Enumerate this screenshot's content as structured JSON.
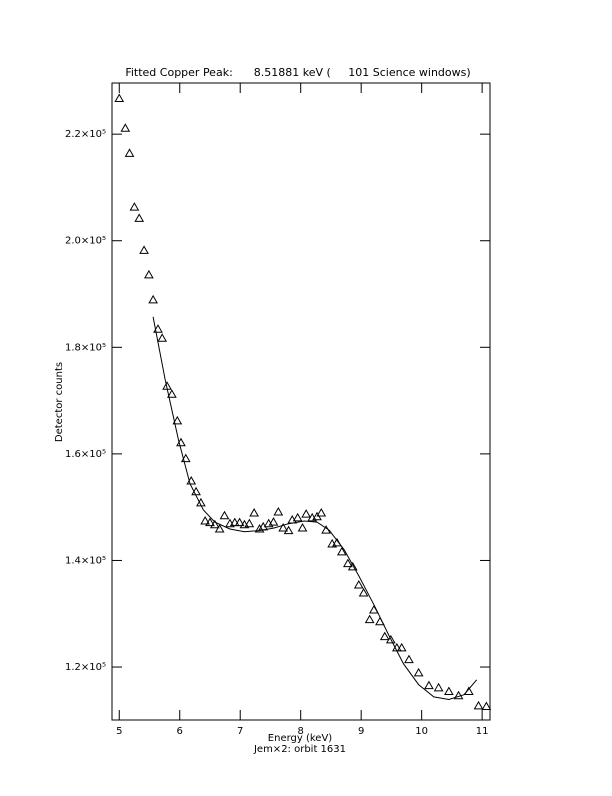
{
  "chart_data": {
    "type": "scatter",
    "title": "Fitted Copper Peak:      8.51881 keV (     101 Science windows)",
    "x_label": "Energy (keV)",
    "subtitle": "Jem×2: orbit 1631",
    "y_label": "Detector counts",
    "xlim": [
      4.88,
      11.13
    ],
    "ylim": [
      110060,
      229600
    ],
    "xticks": [
      5,
      6,
      7,
      8,
      9,
      10,
      11
    ],
    "yticks": [
      {
        "value": 120000,
        "label": "1.2×10⁵"
      },
      {
        "value": 140000,
        "label": "1.4×10⁵"
      },
      {
        "value": 160000,
        "label": "1.6×10⁵"
      },
      {
        "value": 180000,
        "label": "1.8×10⁵"
      },
      {
        "value": 200000,
        "label": "2.0×10⁵"
      },
      {
        "value": 220000,
        "label": "2.2×10⁵"
      }
    ],
    "color": "#000000",
    "series": [
      {
        "mode": "markers",
        "x": [
          5.0,
          5.1,
          5.17,
          5.25,
          5.33,
          5.41,
          5.49,
          5.56,
          5.64,
          5.71,
          5.79,
          5.87,
          5.96,
          6.02,
          6.1,
          6.19,
          6.27,
          6.35,
          6.42,
          6.5,
          6.58,
          6.66,
          6.74,
          6.83,
          6.91,
          6.99,
          7.07,
          7.15,
          7.23,
          7.32,
          7.38,
          7.47,
          7.55,
          7.63,
          7.71,
          7.8,
          7.86,
          7.95,
          8.03,
          8.09,
          8.19,
          8.27,
          8.34,
          8.42,
          8.52,
          8.6,
          8.68,
          8.78,
          8.86,
          8.96,
          9.04,
          9.14,
          9.21,
          9.31,
          9.39,
          9.49,
          9.59,
          9.67,
          9.79,
          9.95,
          10.12,
          10.28,
          10.45,
          10.61,
          10.78,
          10.94,
          11.07
        ],
        "values": [
          226700,
          221100,
          216400,
          206300,
          204200,
          198200,
          193600,
          188900,
          183400,
          181700,
          172700,
          171200,
          166200,
          162100,
          159100,
          154900,
          152900,
          150800,
          147400,
          147100,
          146700,
          145900,
          148400,
          146900,
          147100,
          147100,
          146700,
          146900,
          148900,
          145900,
          146300,
          146900,
          147200,
          149100,
          146100,
          145600,
          147600,
          148000,
          146100,
          148700,
          148000,
          148200,
          148900,
          145700,
          143100,
          143300,
          141600,
          139400,
          138800,
          135400,
          133900,
          128900,
          130700,
          128500,
          125700,
          125100,
          123600,
          123600,
          121400,
          118900,
          116500,
          116100,
          115400,
          114600,
          115400,
          112700,
          112600
        ]
      },
      {
        "mode": "line",
        "x": [
          5.56,
          5.76,
          5.98,
          6.17,
          6.39,
          6.58,
          6.83,
          7.07,
          7.32,
          7.56,
          7.8,
          8.06,
          8.27,
          8.47,
          8.72,
          8.96,
          9.21,
          9.46,
          9.7,
          9.95,
          10.2,
          10.45,
          10.7,
          10.91
        ],
        "values": [
          185700,
          173900,
          162600,
          154400,
          149500,
          147200,
          145900,
          145400,
          145600,
          146100,
          146900,
          147400,
          147200,
          145700,
          142000,
          137100,
          131700,
          125900,
          120600,
          116700,
          114400,
          113900,
          114800,
          117600
        ]
      }
    ]
  }
}
